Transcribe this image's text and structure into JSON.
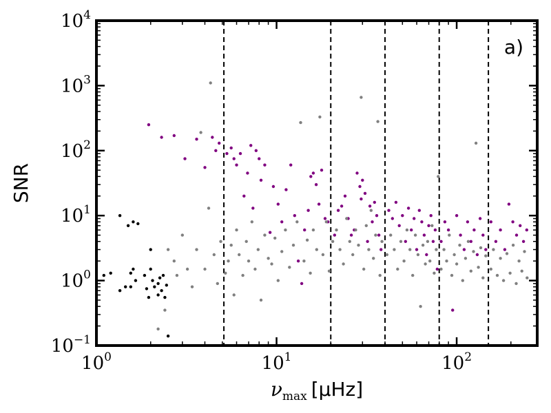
{
  "chart_data": {
    "type": "scatter",
    "title": "",
    "panel_label": "a)",
    "xlabel": {
      "symbol": "ν",
      "subscript": "max",
      "unit": "[μHz]"
    },
    "ylabel": "SNR",
    "xscale": "log",
    "yscale": "log",
    "xlim": [
      1,
      280
    ],
    "ylim": [
      0.1,
      10000
    ],
    "x_ticks": [
      {
        "value": 1,
        "base": "10",
        "exp": "0"
      },
      {
        "value": 10,
        "base": "10",
        "exp": "1"
      },
      {
        "value": 100,
        "base": "10",
        "exp": "2"
      }
    ],
    "y_ticks": [
      {
        "value": 0.1,
        "base": "10",
        "exp": "−1"
      },
      {
        "value": 1,
        "base": "10",
        "exp": "0"
      },
      {
        "value": 10,
        "base": "10",
        "exp": "1"
      },
      {
        "value": 100,
        "base": "10",
        "exp": "2"
      },
      {
        "value": 1000,
        "base": "10",
        "exp": "3"
      },
      {
        "value": 10000,
        "base": "10",
        "exp": "4"
      }
    ],
    "vertical_lines": [
      5.1,
      20,
      40,
      80,
      150
    ],
    "colors": {
      "gray": "#808080",
      "purple": "#800080",
      "black": "#000000"
    },
    "series": [
      {
        "color": "black",
        "points": [
          [
            1.1,
            1.2
          ],
          [
            1.2,
            1.3
          ],
          [
            1.35,
            0.7
          ],
          [
            1.35,
            10
          ],
          [
            1.45,
            0.8
          ],
          [
            1.5,
            7
          ],
          [
            1.55,
            1.3
          ],
          [
            1.55,
            0.8
          ],
          [
            1.6,
            1.5
          ],
          [
            1.6,
            8
          ],
          [
            1.65,
            1.0
          ],
          [
            1.7,
            7.5
          ],
          [
            1.85,
            1.2
          ],
          [
            1.9,
            0.75
          ],
          [
            1.95,
            0.55
          ],
          [
            2.0,
            1.5
          ],
          [
            2.0,
            3.0
          ],
          [
            2.05,
            1.0
          ],
          [
            2.1,
            0.8
          ],
          [
            2.2,
            0.6
          ],
          [
            2.2,
            0.9
          ],
          [
            2.25,
            1.1
          ],
          [
            2.3,
            0.7
          ],
          [
            2.35,
            1.2
          ],
          [
            2.4,
            0.55
          ],
          [
            2.45,
            0.85
          ],
          [
            2.5,
            0.14
          ]
        ]
      },
      {
        "color": "purple",
        "points": [
          [
            1.95,
            250
          ],
          [
            2.3,
            160
          ],
          [
            2.7,
            170
          ],
          [
            3.1,
            75
          ],
          [
            3.6,
            150
          ],
          [
            4.0,
            55
          ],
          [
            4.4,
            160
          ],
          [
            4.6,
            100
          ],
          [
            4.8,
            130
          ],
          [
            5.3,
            90
          ],
          [
            5.6,
            110
          ],
          [
            5.8,
            75
          ],
          [
            6.0,
            60
          ],
          [
            6.3,
            90
          ],
          [
            6.6,
            20
          ],
          [
            6.9,
            45
          ],
          [
            7.2,
            120
          ],
          [
            7.4,
            13
          ],
          [
            7.7,
            100
          ],
          [
            8.0,
            75
          ],
          [
            8.2,
            35
          ],
          [
            8.6,
            60
          ],
          [
            9.2,
            5.5
          ],
          [
            9.6,
            28
          ],
          [
            10.2,
            15
          ],
          [
            10.7,
            8
          ],
          [
            11.3,
            25
          ],
          [
            12.0,
            60
          ],
          [
            12.6,
            10
          ],
          [
            13.2,
            2.0
          ],
          [
            13.8,
            0.9
          ],
          [
            14.3,
            6
          ],
          [
            15.0,
            12
          ],
          [
            15.5,
            40
          ],
          [
            16.0,
            45
          ],
          [
            16.6,
            30
          ],
          [
            17.2,
            15
          ],
          [
            17.8,
            50
          ],
          [
            18.6,
            9
          ],
          [
            19.3,
            8
          ],
          [
            21.0,
            5
          ],
          [
            22.0,
            12
          ],
          [
            23.0,
            14
          ],
          [
            24.0,
            20
          ],
          [
            25.0,
            9
          ],
          [
            26.0,
            5
          ],
          [
            27.0,
            6
          ],
          [
            28.0,
            45
          ],
          [
            29.0,
            28
          ],
          [
            29.5,
            18
          ],
          [
            30.0,
            35
          ],
          [
            31.0,
            22
          ],
          [
            32.0,
            4
          ],
          [
            33.0,
            14
          ],
          [
            34.0,
            8
          ],
          [
            35.0,
            16
          ],
          [
            36.0,
            10
          ],
          [
            37.0,
            5
          ],
          [
            38.0,
            3
          ],
          [
            42.0,
            12
          ],
          [
            44.0,
            9
          ],
          [
            46.0,
            16
          ],
          [
            48.0,
            7
          ],
          [
            50.0,
            10
          ],
          [
            52.0,
            4
          ],
          [
            54.0,
            13
          ],
          [
            56.0,
            6
          ],
          [
            58.0,
            9
          ],
          [
            60.0,
            3
          ],
          [
            62.0,
            12
          ],
          [
            64.0,
            8
          ],
          [
            66.0,
            5
          ],
          [
            68.0,
            2.5
          ],
          [
            70.0,
            7
          ],
          [
            72.0,
            10
          ],
          [
            74.0,
            4
          ],
          [
            76.0,
            6
          ],
          [
            78.0,
            1.5
          ],
          [
            82.0,
            4
          ],
          [
            86.0,
            8
          ],
          [
            90.0,
            6
          ],
          [
            95.0,
            0.35
          ],
          [
            100.0,
            10
          ],
          [
            105.0,
            5
          ],
          [
            110.0,
            3
          ],
          [
            115.0,
            8
          ],
          [
            120.0,
            4
          ],
          [
            125.0,
            6
          ],
          [
            130.0,
            2.5
          ],
          [
            135.0,
            9
          ],
          [
            140.0,
            5
          ],
          [
            145.0,
            3
          ],
          [
            155.0,
            8
          ],
          [
            165.0,
            4
          ],
          [
            175.0,
            6
          ],
          [
            185.0,
            3
          ],
          [
            195.0,
            15
          ],
          [
            205.0,
            8
          ],
          [
            215.0,
            5
          ],
          [
            225.0,
            7
          ],
          [
            235.0,
            4
          ],
          [
            245.0,
            6
          ]
        ]
      },
      {
        "color": "gray",
        "points": [
          [
            2.2,
            0.18
          ],
          [
            2.4,
            0.35
          ],
          [
            2.5,
            3.0
          ],
          [
            2.7,
            2.0
          ],
          [
            2.8,
            1.2
          ],
          [
            3.0,
            5
          ],
          [
            3.2,
            1.5
          ],
          [
            3.4,
            0.8
          ],
          [
            3.6,
            3
          ],
          [
            3.8,
            190
          ],
          [
            4.0,
            1.5
          ],
          [
            4.2,
            13
          ],
          [
            4.3,
            1100
          ],
          [
            4.5,
            2.5
          ],
          [
            4.7,
            0.9
          ],
          [
            4.9,
            4
          ],
          [
            5.2,
            1.3
          ],
          [
            5.4,
            2
          ],
          [
            5.6,
            3.5
          ],
          [
            5.8,
            0.6
          ],
          [
            6.0,
            6
          ],
          [
            6.2,
            2.5
          ],
          [
            6.5,
            1.2
          ],
          [
            6.8,
            4
          ],
          [
            7.0,
            2
          ],
          [
            7.3,
            8
          ],
          [
            7.6,
            1.5
          ],
          [
            7.9,
            3
          ],
          [
            8.2,
            0.5
          ],
          [
            8.6,
            5
          ],
          [
            9.0,
            2.2
          ],
          [
            9.4,
            1.8
          ],
          [
            9.8,
            4.5
          ],
          [
            10.2,
            1.0
          ],
          [
            10.7,
            2.8
          ],
          [
            11.2,
            6
          ],
          [
            11.8,
            1.6
          ],
          [
            12.4,
            3.5
          ],
          [
            13.0,
            8
          ],
          [
            13.6,
            270
          ],
          [
            14.2,
            2.0
          ],
          [
            14.8,
            4.2
          ],
          [
            15.4,
            1.3
          ],
          [
            16.0,
            6
          ],
          [
            16.7,
            3
          ],
          [
            17.4,
            330
          ],
          [
            18.1,
            2.5
          ],
          [
            18.9,
            8
          ],
          [
            19.6,
            1.4
          ],
          [
            20.5,
            4
          ],
          [
            21.5,
            6
          ],
          [
            22.5,
            3
          ],
          [
            23.5,
            1.8
          ],
          [
            24.5,
            9
          ],
          [
            25.5,
            4
          ],
          [
            26.5,
            2.5
          ],
          [
            27.5,
            6
          ],
          [
            28.5,
            3.5
          ],
          [
            29.5,
            660
          ],
          [
            30.5,
            1.5
          ],
          [
            31.5,
            7
          ],
          [
            32.5,
            3
          ],
          [
            33.5,
            12
          ],
          [
            34.5,
            2.2
          ],
          [
            35.5,
            5
          ],
          [
            36.5,
            280
          ],
          [
            37.5,
            1.2
          ],
          [
            38.5,
            4
          ],
          [
            41.0,
            2.5
          ],
          [
            43.0,
            5
          ],
          [
            45.0,
            3
          ],
          [
            47.0,
            1.5
          ],
          [
            49.0,
            4
          ],
          [
            51.0,
            2
          ],
          [
            53.0,
            6
          ],
          [
            55.0,
            3
          ],
          [
            57.0,
            1.2
          ],
          [
            59.0,
            5
          ],
          [
            61.0,
            2.5
          ],
          [
            63.0,
            0.4
          ],
          [
            65.0,
            3.5
          ],
          [
            67.0,
            1.8
          ],
          [
            69.0,
            4
          ],
          [
            71.0,
            2
          ],
          [
            73.0,
            7
          ],
          [
            75.0,
            1.3
          ],
          [
            77.0,
            3
          ],
          [
            79.0,
            40
          ],
          [
            82.0,
            1.5
          ],
          [
            85.0,
            3
          ],
          [
            88.0,
            2
          ],
          [
            91.0,
            5
          ],
          [
            94.0,
            1.2
          ],
          [
            97.0,
            2.5
          ],
          [
            100.0,
            1.8
          ],
          [
            104.0,
            3.5
          ],
          [
            108.0,
            1.0
          ],
          [
            112.0,
            2.2
          ],
          [
            116.0,
            4
          ],
          [
            120.0,
            1.4
          ],
          [
            124.0,
            2.8
          ],
          [
            128.0,
            130
          ],
          [
            132.0,
            1.6
          ],
          [
            136.0,
            3.2
          ],
          [
            140.0,
            1.1
          ],
          [
            145.0,
            2.4
          ],
          [
            155.0,
            1.5
          ],
          [
            160.0,
            3
          ],
          [
            168.0,
            1.2
          ],
          [
            175.0,
            2.2
          ],
          [
            182.0,
            1.0
          ],
          [
            190.0,
            2.6
          ],
          [
            198.0,
            1.3
          ],
          [
            206.0,
            3.5
          ],
          [
            214.0,
            0.9
          ],
          [
            222.0,
            2
          ],
          [
            230.0,
            1.4
          ],
          [
            238.0,
            2.8
          ],
          [
            246.0,
            1.1
          ]
        ]
      }
    ]
  }
}
